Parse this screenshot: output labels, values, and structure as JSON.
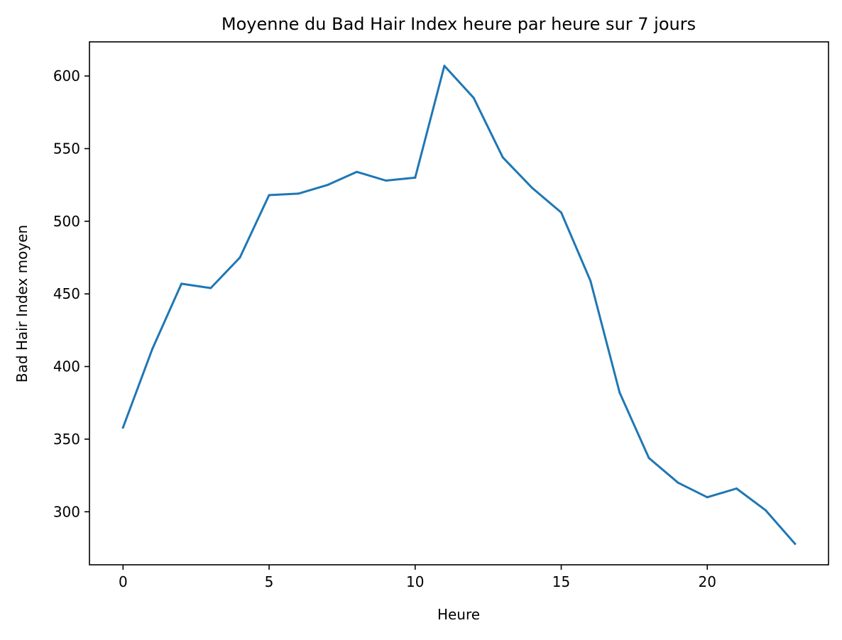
{
  "chart_data": {
    "type": "line",
    "title": "Moyenne du Bad Hair Index heure par heure sur 7 jours",
    "xlabel": "Heure",
    "ylabel": "Bad Hair Index moyen",
    "xlim": [
      -1.15,
      24.15
    ],
    "ylim": [
      263.5,
      623.5
    ],
    "xticks": [
      0,
      5,
      10,
      15,
      20
    ],
    "yticks": [
      300,
      350,
      400,
      450,
      500,
      550,
      600
    ],
    "grid": false,
    "legend": "none",
    "series": [
      {
        "color": "#1f77b4",
        "x": [
          0,
          1,
          2,
          3,
          4,
          5,
          6,
          7,
          8,
          9,
          10,
          11,
          12,
          13,
          14,
          15,
          16,
          17,
          18,
          19,
          20,
          21,
          22,
          23
        ],
        "values": [
          358,
          412,
          457,
          454,
          475,
          518,
          519,
          525,
          534,
          528,
          530,
          607,
          585,
          544,
          523,
          506,
          459,
          382,
          337,
          320,
          310,
          316,
          301,
          278
        ]
      }
    ]
  }
}
